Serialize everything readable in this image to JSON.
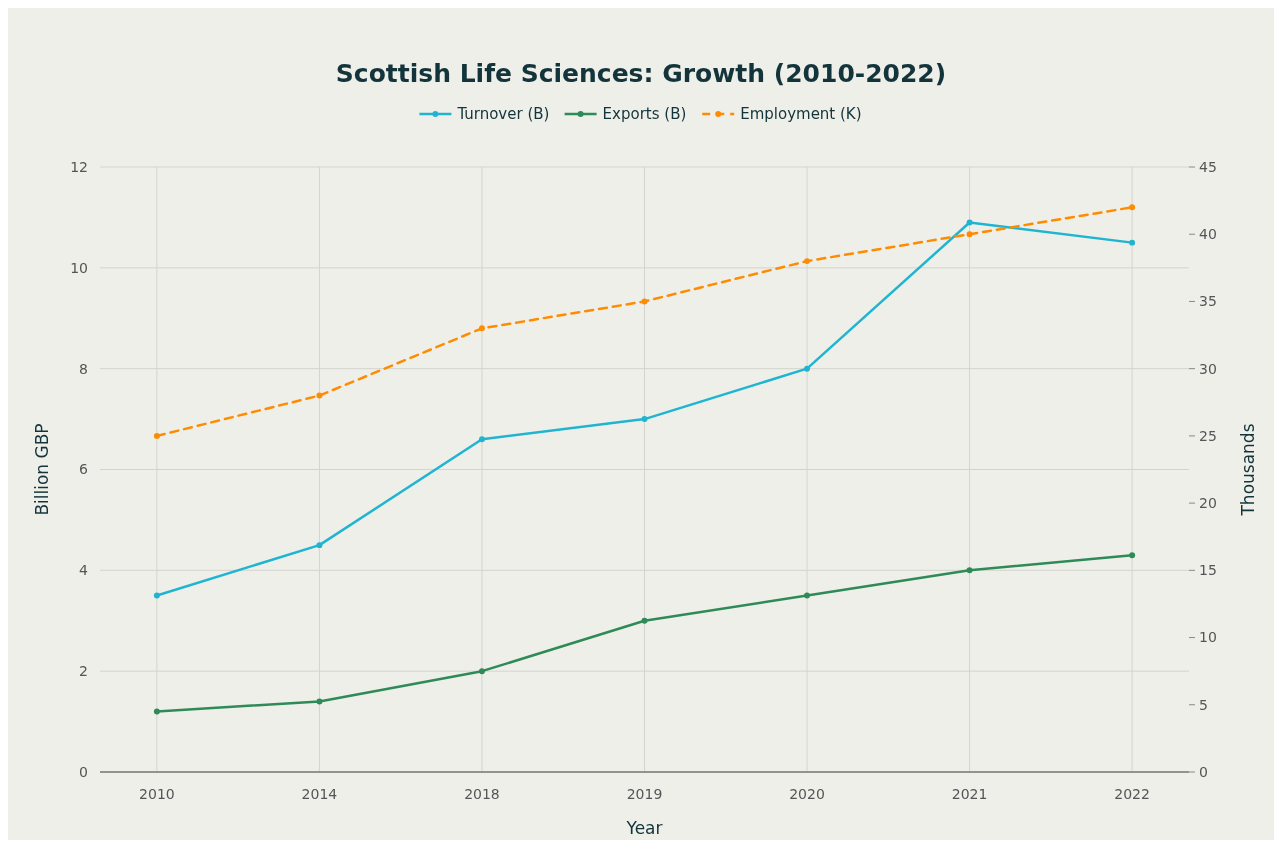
{
  "chart_data": {
    "type": "line",
    "title": "Scottish Life Sciences: Growth (2010-2022)",
    "xlabel": "Year",
    "ylabel": "Billion GBP",
    "y2label": "Thousands",
    "categories": [
      "2010",
      "2014",
      "2018",
      "2019",
      "2020",
      "2021",
      "2022"
    ],
    "series": [
      {
        "name": "Turnover (B)",
        "color": "#1fb5d1",
        "values": [
          3.5,
          4.5,
          6.6,
          7.0,
          8.0,
          10.9,
          10.5
        ]
      },
      {
        "name": "Exports (B)",
        "color": "#2e8b57",
        "values": [
          1.2,
          1.4,
          2.0,
          3.0,
          3.5,
          4.0,
          4.3
        ]
      },
      {
        "name": "Employment (K)",
        "color": "#ff8c00",
        "values": [
          25,
          28,
          33,
          35,
          38,
          40,
          42
        ],
        "axis": "y2",
        "line_style": "dashed"
      }
    ],
    "ylim": [
      0,
      12
    ],
    "yticks": [
      0,
      2,
      4,
      6,
      8,
      10,
      12
    ],
    "y2lim": [
      0,
      45
    ],
    "y2ticks": [
      0,
      5,
      10,
      15,
      20,
      25,
      30,
      35,
      40,
      45
    ],
    "grid": true,
    "legend": "top",
    "marker": "circle",
    "line_style": "solid"
  }
}
